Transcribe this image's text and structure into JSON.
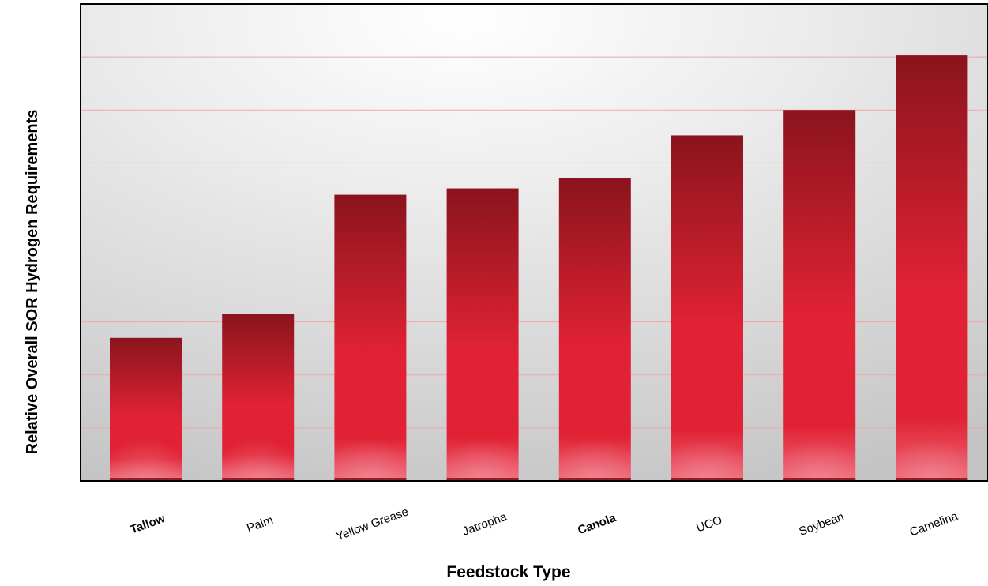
{
  "chart_data": {
    "type": "bar",
    "title": "",
    "xlabel": "Feedstock Type",
    "ylabel": "Relative Overall SOR Hydrogen Requirements",
    "categories": [
      "Tallow",
      "Palm",
      "Yellow Grease",
      "Jatropha",
      "Canola",
      "UCO",
      "Soybean",
      "Camelina"
    ],
    "values": [
      2.7,
      3.15,
      5.4,
      5.52,
      5.72,
      6.52,
      7.0,
      8.03
    ],
    "ylim": [
      0,
      9
    ],
    "grid": true,
    "y_tick_labels_shown": false,
    "colors": {
      "bar_top": "#8a141d",
      "bar_mid": "#e02234",
      "bar_bottom": "#ee6676",
      "gridline": "#f2a7a7",
      "plot_bg_light": "#ffffff",
      "plot_bg_dark": "#c9c9c9",
      "axis": "#000000"
    }
  }
}
